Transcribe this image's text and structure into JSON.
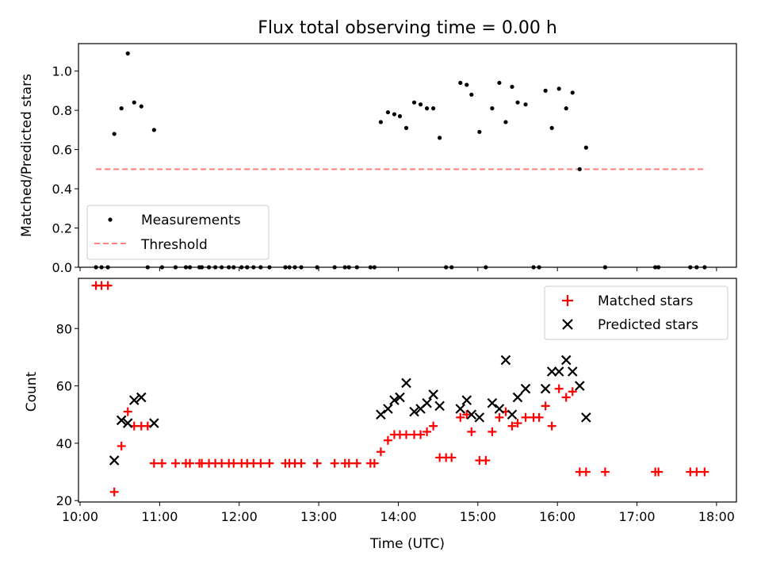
{
  "chart_data": [
    {
      "type": "scatter",
      "title": "Flux total observing time = 0.00 h",
      "ylabel": "Matched/Predicted stars",
      "xlabel": "",
      "xlim_hours": [
        9.98,
        18.25
      ],
      "ylim": [
        0,
        1.14
      ],
      "yticks": [
        0.0,
        0.2,
        0.4,
        0.6,
        0.8,
        1.0
      ],
      "ytick_labels": [
        "0.0",
        "0.2",
        "0.4",
        "0.6",
        "0.8",
        "1.0"
      ],
      "threshold": {
        "value": 0.5,
        "x_range_hours": [
          10.2,
          17.87
        ],
        "color": "#ff7f7f"
      },
      "legend": {
        "position": "lower-left",
        "entries": [
          "Measurements",
          "Threshold"
        ]
      },
      "series": [
        {
          "name": "Measurements",
          "color": "#000000",
          "points": [
            [
              10.2,
              0
            ],
            [
              10.27,
              0
            ],
            [
              10.35,
              0
            ],
            [
              10.43,
              0.68
            ],
            [
              10.52,
              0.81
            ],
            [
              10.6,
              1.09
            ],
            [
              10.68,
              0.84
            ],
            [
              10.77,
              0.82
            ],
            [
              10.85,
              0
            ],
            [
              10.93,
              0.7
            ],
            [
              11.03,
              0
            ],
            [
              11.2,
              0
            ],
            [
              11.33,
              0
            ],
            [
              11.38,
              0
            ],
            [
              11.5,
              0
            ],
            [
              11.53,
              0
            ],
            [
              11.62,
              0
            ],
            [
              11.7,
              0
            ],
            [
              11.78,
              0
            ],
            [
              11.87,
              0
            ],
            [
              11.93,
              0
            ],
            [
              12.03,
              0
            ],
            [
              12.1,
              0
            ],
            [
              12.18,
              0
            ],
            [
              12.27,
              0
            ],
            [
              12.38,
              0
            ],
            [
              12.58,
              0
            ],
            [
              12.63,
              0
            ],
            [
              12.7,
              0
            ],
            [
              12.78,
              0
            ],
            [
              12.98,
              0
            ],
            [
              13.2,
              0
            ],
            [
              13.33,
              0
            ],
            [
              13.38,
              0
            ],
            [
              13.48,
              0
            ],
            [
              13.65,
              0
            ],
            [
              13.7,
              0
            ],
            [
              13.78,
              0.74
            ],
            [
              13.87,
              0.79
            ],
            [
              13.95,
              0.78
            ],
            [
              14.02,
              0.77
            ],
            [
              14.1,
              0.71
            ],
            [
              14.2,
              0.84
            ],
            [
              14.28,
              0.83
            ],
            [
              14.36,
              0.81
            ],
            [
              14.44,
              0.81
            ],
            [
              14.52,
              0.66
            ],
            [
              14.6,
              0
            ],
            [
              14.67,
              0
            ],
            [
              14.78,
              0.94
            ],
            [
              14.86,
              0.93
            ],
            [
              14.92,
              0.88
            ],
            [
              15.02,
              0.69
            ],
            [
              15.1,
              0
            ],
            [
              15.18,
              0.81
            ],
            [
              15.27,
              0.94
            ],
            [
              15.35,
              0.74
            ],
            [
              15.43,
              0.92
            ],
            [
              15.5,
              0.84
            ],
            [
              15.6,
              0.83
            ],
            [
              15.7,
              0
            ],
            [
              15.77,
              0
            ],
            [
              15.85,
              0.9
            ],
            [
              15.93,
              0.71
            ],
            [
              16.02,
              0.91
            ],
            [
              16.11,
              0.81
            ],
            [
              16.19,
              0.89
            ],
            [
              16.28,
              0.5
            ],
            [
              16.36,
              0.61
            ],
            [
              16.6,
              0
            ],
            [
              17.23,
              0
            ],
            [
              17.27,
              0
            ],
            [
              17.67,
              0
            ],
            [
              17.75,
              0
            ],
            [
              17.85,
              0
            ]
          ]
        }
      ]
    },
    {
      "type": "scatter",
      "title": "",
      "ylabel": "Count",
      "xlabel": "Time (UTC)",
      "xlim_hours": [
        9.98,
        18.25
      ],
      "ylim": [
        19.5,
        97.5
      ],
      "yticks": [
        20,
        40,
        60,
        80
      ],
      "ytick_labels": [
        "20",
        "40",
        "60",
        "80"
      ],
      "xticks_hours": [
        10,
        11,
        12,
        13,
        14,
        15,
        16,
        17,
        18
      ],
      "xtick_labels": [
        "10:00",
        "11:00",
        "12:00",
        "13:00",
        "14:00",
        "15:00",
        "16:00",
        "17:00",
        "18:00"
      ],
      "legend": {
        "position": "top-right",
        "entries": [
          "Matched stars",
          "Predicted stars"
        ]
      },
      "series": [
        {
          "name": "Matched stars",
          "marker": "plus",
          "color": "#ff0000",
          "points": [
            [
              10.2,
              95
            ],
            [
              10.27,
              95
            ],
            [
              10.35,
              95
            ],
            [
              10.43,
              23
            ],
            [
              10.52,
              39
            ],
            [
              10.6,
              51
            ],
            [
              10.68,
              46
            ],
            [
              10.77,
              46
            ],
            [
              10.85,
              46
            ],
            [
              10.93,
              33
            ],
            [
              11.03,
              33
            ],
            [
              11.2,
              33
            ],
            [
              11.33,
              33
            ],
            [
              11.38,
              33
            ],
            [
              11.5,
              33
            ],
            [
              11.53,
              33
            ],
            [
              11.62,
              33
            ],
            [
              11.7,
              33
            ],
            [
              11.78,
              33
            ],
            [
              11.87,
              33
            ],
            [
              11.93,
              33
            ],
            [
              12.03,
              33
            ],
            [
              12.1,
              33
            ],
            [
              12.18,
              33
            ],
            [
              12.27,
              33
            ],
            [
              12.38,
              33
            ],
            [
              12.58,
              33
            ],
            [
              12.63,
              33
            ],
            [
              12.7,
              33
            ],
            [
              12.78,
              33
            ],
            [
              12.98,
              33
            ],
            [
              13.2,
              33
            ],
            [
              13.33,
              33
            ],
            [
              13.38,
              33
            ],
            [
              13.48,
              33
            ],
            [
              13.65,
              33
            ],
            [
              13.7,
              33
            ],
            [
              13.78,
              37
            ],
            [
              13.87,
              41
            ],
            [
              13.95,
              43
            ],
            [
              14.02,
              43
            ],
            [
              14.1,
              43
            ],
            [
              14.2,
              43
            ],
            [
              14.28,
              43
            ],
            [
              14.36,
              44
            ],
            [
              14.44,
              46
            ],
            [
              14.52,
              35
            ],
            [
              14.6,
              35
            ],
            [
              14.67,
              35
            ],
            [
              14.78,
              49
            ],
            [
              14.86,
              50
            ],
            [
              14.92,
              44
            ],
            [
              15.02,
              34
            ],
            [
              15.1,
              34
            ],
            [
              15.18,
              44
            ],
            [
              15.27,
              49
            ],
            [
              15.35,
              51
            ],
            [
              15.43,
              46
            ],
            [
              15.5,
              47
            ],
            [
              15.6,
              49
            ],
            [
              15.7,
              49
            ],
            [
              15.77,
              49
            ],
            [
              15.85,
              53
            ],
            [
              15.93,
              46
            ],
            [
              16.02,
              59
            ],
            [
              16.11,
              56
            ],
            [
              16.19,
              58
            ],
            [
              16.28,
              30
            ],
            [
              16.36,
              30
            ],
            [
              16.6,
              30
            ],
            [
              17.23,
              30
            ],
            [
              17.27,
              30
            ],
            [
              17.67,
              30
            ],
            [
              17.75,
              30
            ],
            [
              17.85,
              30
            ]
          ]
        },
        {
          "name": "Predicted stars",
          "marker": "x",
          "color": "#000000",
          "points": [
            [
              10.43,
              34
            ],
            [
              10.52,
              48
            ],
            [
              10.6,
              47
            ],
            [
              10.68,
              55
            ],
            [
              10.77,
              56
            ],
            [
              10.93,
              47
            ],
            [
              13.78,
              50
            ],
            [
              13.87,
              52
            ],
            [
              13.95,
              55
            ],
            [
              14.02,
              56
            ],
            [
              14.1,
              61
            ],
            [
              14.2,
              51
            ],
            [
              14.28,
              52
            ],
            [
              14.36,
              54
            ],
            [
              14.44,
              57
            ],
            [
              14.52,
              53
            ],
            [
              14.78,
              52
            ],
            [
              14.86,
              55
            ],
            [
              14.92,
              50
            ],
            [
              15.02,
              49
            ],
            [
              15.18,
              54
            ],
            [
              15.27,
              52
            ],
            [
              15.35,
              69
            ],
            [
              15.43,
              50
            ],
            [
              15.5,
              56
            ],
            [
              15.6,
              59
            ],
            [
              15.85,
              59
            ],
            [
              15.93,
              65
            ],
            [
              16.02,
              65
            ],
            [
              16.11,
              69
            ],
            [
              16.19,
              65
            ],
            [
              16.28,
              60
            ],
            [
              16.36,
              49
            ]
          ]
        }
      ]
    }
  ]
}
